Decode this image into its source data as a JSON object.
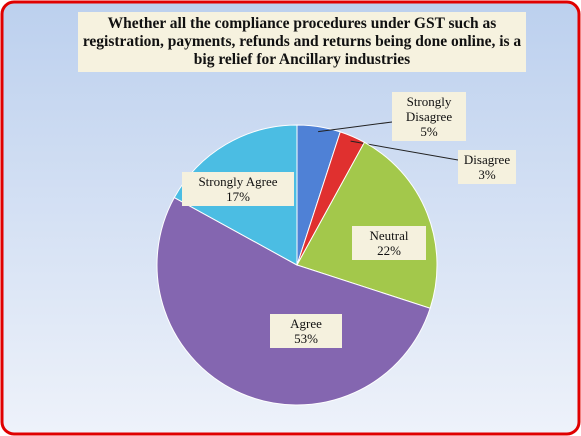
{
  "chart_data": {
    "type": "pie",
    "title": "Whether all the compliance procedures under GST such as registration, payments, refunds and returns being done online, is a big relief for Ancillary industries",
    "categories": [
      "Strongly Disagree",
      "Disagree",
      "Neutral",
      "Agree",
      "Strongly Agree"
    ],
    "values": [
      5,
      3,
      22,
      53,
      17
    ],
    "value_labels": [
      "5%",
      "3%",
      "22%",
      "53%",
      "17%"
    ],
    "colors": [
      "#4f81d6",
      "#e0302f",
      "#a3c84b",
      "#8466b0",
      "#4bbde3"
    ]
  }
}
